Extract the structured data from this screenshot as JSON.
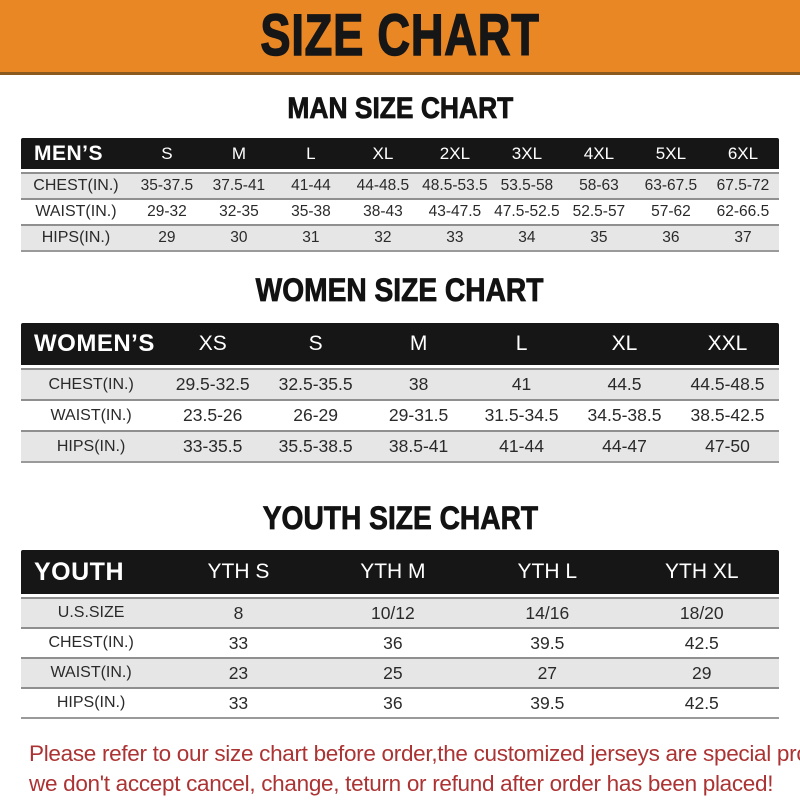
{
  "banner": {
    "title": "SIZE CHART",
    "bg_color": "#EA8725",
    "text_color": "#161616"
  },
  "sections": [
    {
      "title": "MAN SIZE CHART",
      "group_label": "MEN’S",
      "columns": [
        "S",
        "M",
        "L",
        "XL",
        "2XL",
        "3XL",
        "4XL",
        "5XL",
        "6XL"
      ],
      "rows": [
        {
          "label": "CHEST(IN.)",
          "values": [
            "35-37.5",
            "37.5-41",
            "41-44",
            "44-48.5",
            "48.5-53.5",
            "53.5-58",
            "58-63",
            "63-67.5",
            "67.5-72"
          ]
        },
        {
          "label": "WAIST(IN.)",
          "values": [
            "29-32",
            "32-35",
            "35-38",
            "38-43",
            "43-47.5",
            "47.5-52.5",
            "52.5-57",
            "57-62",
            "62-66.5"
          ]
        },
        {
          "label": "HIPS(IN.)",
          "values": [
            "29",
            "30",
            "31",
            "32",
            "33",
            "34",
            "35",
            "36",
            "37"
          ]
        }
      ]
    },
    {
      "title": "WOMEN SIZE CHART",
      "group_label": "WOMEN’S",
      "columns": [
        "XS",
        "S",
        "M",
        "L",
        "XL",
        "XXL"
      ],
      "rows": [
        {
          "label": "CHEST(IN.)",
          "values": [
            "29.5-32.5",
            "32.5-35.5",
            "38",
            "41",
            "44.5",
            "44.5-48.5"
          ]
        },
        {
          "label": "WAIST(IN.)",
          "values": [
            "23.5-26",
            "26-29",
            "29-31.5",
            "31.5-34.5",
            "34.5-38.5",
            "38.5-42.5"
          ]
        },
        {
          "label": "HIPS(IN.)",
          "values": [
            "33-35.5",
            "35.5-38.5",
            "38.5-41",
            "41-44",
            "44-47",
            "47-50"
          ]
        }
      ]
    },
    {
      "title": "YOUTH SIZE CHART",
      "group_label": "YOUTH",
      "columns": [
        "YTH S",
        "YTH M",
        "YTH L",
        "YTH XL"
      ],
      "rows": [
        {
          "label": "U.S.SIZE",
          "values": [
            "8",
            "10/12",
            "14/16",
            "18/20"
          ]
        },
        {
          "label": "CHEST(IN.)",
          "values": [
            "33",
            "36",
            "39.5",
            "42.5"
          ]
        },
        {
          "label": "WAIST(IN.)",
          "values": [
            "23",
            "25",
            "27",
            "29"
          ]
        },
        {
          "label": "HIPS(IN.)",
          "values": [
            "33",
            "36",
            "39.5",
            "42.5"
          ]
        }
      ]
    }
  ],
  "header_bar_color": "#161616",
  "row_stripe_color": "#E6E6E6",
  "disclaimer": {
    "color": "#AC3333",
    "line1": "Please refer to our size chart before order,the customized jerseys are special products,",
    "line2": "we don't accept cancel, change, teturn or refund after order has been placed!"
  }
}
